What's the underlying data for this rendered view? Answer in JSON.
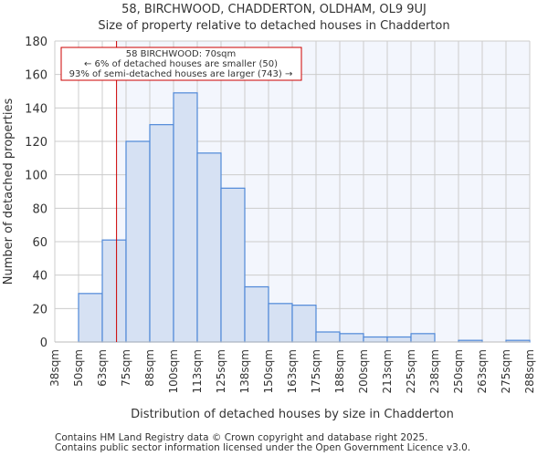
{
  "chart_data": {
    "type": "bar",
    "title": "58, BIRCHWOOD, CHADDERTON, OLDHAM, OL9 9UJ",
    "subtitle": "Size of property relative to detached houses in Chadderton",
    "xlabel": "Distribution of detached houses by size in Chadderton",
    "ylabel": "Number of detached properties",
    "x_ticks": [
      "38sqm",
      "50sqm",
      "63sqm",
      "75sqm",
      "88sqm",
      "100sqm",
      "113sqm",
      "125sqm",
      "138sqm",
      "150sqm",
      "163sqm",
      "175sqm",
      "188sqm",
      "200sqm",
      "213sqm",
      "225sqm",
      "238sqm",
      "250sqm",
      "263sqm",
      "275sqm",
      "288sqm"
    ],
    "bin_edges": [
      37.5,
      50,
      62.5,
      75,
      87.5,
      100,
      112.5,
      125,
      137.5,
      150,
      162.5,
      175,
      187.5,
      200,
      212.5,
      225,
      237.5,
      250,
      262.5,
      275,
      287.5
    ],
    "values": [
      0,
      29,
      61,
      120,
      130,
      149,
      113,
      92,
      33,
      23,
      22,
      6,
      5,
      3,
      3,
      5,
      0,
      1,
      0,
      1
    ],
    "y_ticks": [
      0,
      20,
      40,
      60,
      80,
      100,
      120,
      140,
      160,
      180
    ],
    "ylim": [
      0,
      180
    ],
    "grid": true,
    "marker": {
      "value": 70,
      "color": "#cc0000"
    },
    "annotation": {
      "line1": "58 BIRCHWOOD: 70sqm",
      "line2": "← 6% of detached houses are smaller (50)",
      "line3": "93% of semi-detached houses are larger (743) →"
    },
    "colors": {
      "bar": "#d6e1f3",
      "bar_edge": "#4f88d8",
      "bg_right": "#f3f6fd",
      "grid": "#cccccc"
    }
  },
  "footer": {
    "line1": "Contains HM Land Registry data © Crown copyright and database right 2025.",
    "line2": "Contains public sector information licensed under the Open Government Licence v3.0."
  }
}
